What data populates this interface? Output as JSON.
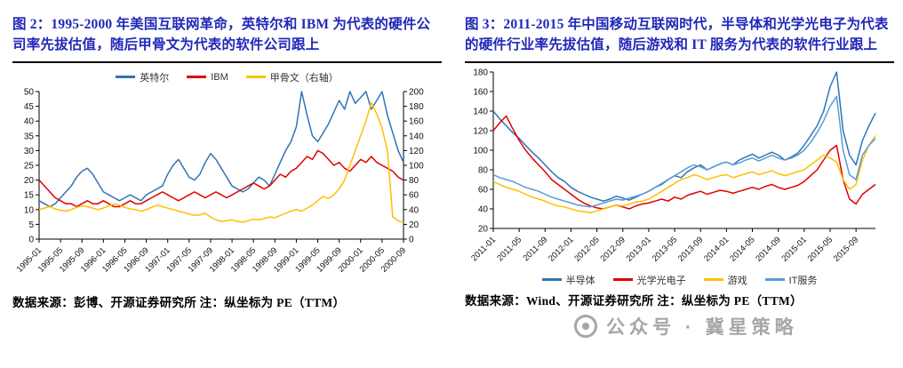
{
  "colors": {
    "title_blue": "#2128b8",
    "axis_black": "#000000",
    "watermark_gray": "#9a9a9a",
    "series_blue": "#2E75B6",
    "series_red": "#E00000",
    "series_gold": "#FFC000",
    "series_lightblue": "#5B9BD5"
  },
  "figure2": {
    "title": "图 2：1995-2000 年美国互联网革命，英特尔和 IBM 为代表的硬件公司率先拔估值，随后甲骨文为代表的软件公司跟上",
    "source_note": "数据来源：彭博、开源证券研究所  注：纵坐标为 PE（TTM）"
  },
  "figure3": {
    "title": "图 3：2011-2015 年中国移动互联网时代，半导体和光学光电子为代表的硬件行业率先拔估值，随后游戏和 IT 服务为代表的软件行业跟上",
    "source_note": "数据来源：Wind、开源证券研究所 注：纵坐标为 PE（TTM）"
  },
  "watermark": {
    "text": "公众号 · 冀星策略"
  },
  "chart_data": [
    {
      "type": "line",
      "title": "1995-2000 美国互联网公司 PE（TTM）",
      "legend_position": "top",
      "x_label_every": 4,
      "x_labels": [
        "1995-01",
        "1995-05",
        "1995-09",
        "1996-01",
        "1996-05",
        "1996-09",
        "1997-01",
        "1997-05",
        "1997-09",
        "1998-01",
        "1998-05",
        "1998-09",
        "1999-01",
        "1999-05",
        "1999-09",
        "2000-01",
        "2000-05",
        "2000-09"
      ],
      "left_axis": {
        "min": 0,
        "max": 50,
        "step": 5
      },
      "right_axis": {
        "min": 0,
        "max": 200,
        "step": 20
      },
      "grid": false,
      "series": [
        {
          "name": "英特尔",
          "axis": "left",
          "color": "#2E75B6",
          "values": [
            13,
            12,
            11,
            12,
            14,
            16,
            18,
            21,
            23,
            24,
            22,
            19,
            16,
            15,
            14,
            13,
            14,
            15,
            14,
            13,
            15,
            16,
            17,
            18,
            22,
            25,
            27,
            24,
            21,
            20,
            22,
            26,
            29,
            27,
            24,
            21,
            18,
            17,
            16,
            17,
            19,
            21,
            20,
            18,
            22,
            26,
            30,
            33,
            38,
            50,
            42,
            35,
            33,
            36,
            39,
            43,
            47,
            44,
            50,
            46,
            48,
            50,
            44,
            47,
            50,
            42,
            36,
            30,
            26
          ]
        },
        {
          "name": "IBM",
          "axis": "left",
          "color": "#E00000",
          "values": [
            20,
            18,
            16,
            14,
            13,
            12,
            12,
            11,
            12,
            13,
            12,
            12,
            13,
            12,
            11,
            11,
            12,
            13,
            12,
            12,
            13,
            14,
            15,
            16,
            15,
            14,
            13,
            14,
            15,
            16,
            15,
            14,
            15,
            16,
            15,
            14,
            15,
            16,
            17,
            18,
            19,
            18,
            17,
            18,
            20,
            22,
            21,
            23,
            24,
            26,
            28,
            27,
            30,
            29,
            27,
            25,
            26,
            24,
            23,
            25,
            27,
            26,
            28,
            26,
            25,
            24,
            23,
            21,
            20
          ]
        },
        {
          "name": "甲骨文（右轴）",
          "axis": "right",
          "color": "#FFC000",
          "values": [
            40,
            42,
            44,
            41,
            39,
            38,
            40,
            43,
            45,
            44,
            42,
            40,
            42,
            45,
            48,
            46,
            43,
            41,
            40,
            38,
            40,
            43,
            46,
            44,
            42,
            40,
            38,
            36,
            34,
            32,
            33,
            35,
            30,
            26,
            24,
            25,
            26,
            24,
            23,
            25,
            27,
            26,
            28,
            30,
            29,
            32,
            35,
            38,
            40,
            38,
            42,
            46,
            52,
            58,
            55,
            60,
            68,
            80,
            100,
            120,
            140,
            160,
            185,
            170,
            150,
            120,
            30,
            25,
            22
          ]
        }
      ]
    },
    {
      "type": "line",
      "title": "2011-2015 中国移动互联网行业 PE（TTM）",
      "legend_position": "bottom",
      "x_label_every": 4,
      "x_labels": [
        "2011-01",
        "2011-05",
        "2011-09",
        "2012-01",
        "2012-05",
        "2012-09",
        "2013-01",
        "2013-05",
        "2013-09",
        "2014-01",
        "2014-05",
        "2014-09",
        "2015-01",
        "2015-05",
        "2015-09"
      ],
      "left_axis": {
        "min": 20,
        "max": 180,
        "step": 20
      },
      "grid": false,
      "series": [
        {
          "name": "半导体",
          "axis": "left",
          "color": "#2E75B6",
          "values": [
            140,
            132,
            125,
            118,
            112,
            105,
            98,
            92,
            85,
            78,
            72,
            68,
            62,
            58,
            55,
            52,
            50,
            48,
            50,
            53,
            51,
            49,
            52,
            55,
            58,
            62,
            65,
            70,
            74,
            72,
            78,
            82,
            85,
            80,
            83,
            86,
            88,
            85,
            90,
            93,
            96,
            92,
            95,
            98,
            95,
            90,
            93,
            97,
            105,
            115,
            125,
            140,
            165,
            180,
            120,
            95,
            85,
            110,
            125,
            138
          ]
        },
        {
          "name": "光学光电子",
          "axis": "left",
          "color": "#E00000",
          "values": [
            120,
            128,
            135,
            122,
            110,
            100,
            92,
            85,
            78,
            70,
            65,
            60,
            55,
            50,
            46,
            43,
            41,
            40,
            42,
            44,
            42,
            40,
            43,
            45,
            46,
            48,
            50,
            48,
            52,
            50,
            54,
            56,
            58,
            55,
            57,
            59,
            58,
            56,
            58,
            60,
            62,
            60,
            63,
            65,
            62,
            60,
            62,
            64,
            68,
            74,
            80,
            90,
            100,
            105,
            70,
            50,
            45,
            55,
            60,
            65
          ]
        },
        {
          "name": "游戏",
          "axis": "left",
          "color": "#FFC000",
          "values": [
            68,
            65,
            62,
            60,
            58,
            55,
            52,
            50,
            48,
            45,
            43,
            42,
            40,
            38,
            37,
            36,
            38,
            40,
            42,
            44,
            43,
            45,
            47,
            48,
            50,
            54,
            58,
            62,
            66,
            70,
            72,
            75,
            73,
            70,
            72,
            74,
            75,
            72,
            74,
            76,
            78,
            75,
            77,
            79,
            76,
            74,
            76,
            78,
            80,
            85,
            90,
            95,
            92,
            88,
            70,
            60,
            65,
            90,
            105,
            115
          ]
        },
        {
          "name": "IT服务",
          "axis": "left",
          "color": "#5B9BD5",
          "values": [
            75,
            72,
            70,
            68,
            65,
            62,
            60,
            58,
            55,
            52,
            50,
            48,
            46,
            44,
            43,
            42,
            44,
            46,
            48,
            50,
            49,
            51,
            53,
            55,
            58,
            62,
            66,
            70,
            74,
            78,
            82,
            85,
            83,
            80,
            83,
            86,
            88,
            85,
            87,
            90,
            92,
            89,
            92,
            95,
            92,
            90,
            92,
            95,
            100,
            108,
            118,
            130,
            145,
            155,
            100,
            75,
            70,
            95,
            105,
            112
          ]
        }
      ]
    }
  ]
}
